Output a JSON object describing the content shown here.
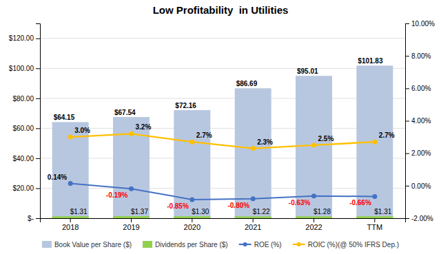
{
  "chart_data": {
    "type": "bar",
    "title": "Low Profitability  in Utilities",
    "categories": [
      "2018",
      "2019",
      "2020",
      "2021",
      "2022",
      "TTM"
    ],
    "series": [
      {
        "name": "Book Value per Share ($)",
        "type": "bar",
        "color": "#b8c7e0",
        "values": [
          64.15,
          67.54,
          72.16,
          86.69,
          95.01,
          101.83
        ],
        "value_labels": [
          "$64.15",
          "$67.54",
          "$72.16",
          "$86.69",
          "$95.01",
          "$101.83"
        ]
      },
      {
        "name": "Dividends per Share ($)",
        "type": "bar",
        "color": "#92d050",
        "values": [
          1.31,
          1.37,
          1.3,
          1.22,
          1.28,
          1.31
        ],
        "value_labels": [
          "$1.31",
          "$1.37",
          "$1.30",
          "$1.22",
          "$1.28",
          "$1.31"
        ]
      },
      {
        "name": "ROE (%)",
        "type": "line",
        "axis": "y2",
        "color": "#4472c4",
        "marker": "circle",
        "values": [
          0.14,
          -0.19,
          -0.85,
          -0.8,
          -0.63,
          -0.66
        ],
        "value_labels": [
          "0.14%",
          "-0.19%",
          "-0.85%",
          "-0.80%",
          "-0.63%",
          "-0.66%"
        ]
      },
      {
        "name": "ROIC (%)(@ 50% IFRS Dep.)",
        "type": "line",
        "axis": "y2",
        "color": "#ffc000",
        "marker": "circle",
        "values": [
          3.0,
          3.2,
          2.7,
          2.3,
          2.5,
          2.7
        ],
        "value_labels": [
          "3.0%",
          "3.2%",
          "2.7%",
          "2.3%",
          "2.5%",
          "2.7%"
        ]
      }
    ],
    "ylim": [
      0,
      130
    ],
    "yticks": [
      {
        "value": 0,
        "label": "$-"
      },
      {
        "value": 20,
        "label": "$20.00"
      },
      {
        "value": 40,
        "label": "$40.00"
      },
      {
        "value": 60,
        "label": "$60.00"
      },
      {
        "value": 80,
        "label": "$80.00"
      },
      {
        "value": 100,
        "label": "$100.00"
      },
      {
        "value": 120,
        "label": "$120.00"
      }
    ],
    "y2lim": [
      -2.0,
      10.0
    ],
    "y2ticks": [
      {
        "value": -2.0,
        "label": "-2.00%"
      },
      {
        "value": 0.0,
        "label": "0.00%"
      },
      {
        "value": 2.0,
        "label": "2.00%"
      },
      {
        "value": 4.0,
        "label": "4.00%"
      },
      {
        "value": 6.0,
        "label": "6.00%"
      },
      {
        "value": 8.0,
        "label": "8.00%"
      },
      {
        "value": 10.0,
        "label": "10.00%"
      }
    ],
    "grid": true,
    "data_labels": true,
    "legend": "bottom"
  }
}
